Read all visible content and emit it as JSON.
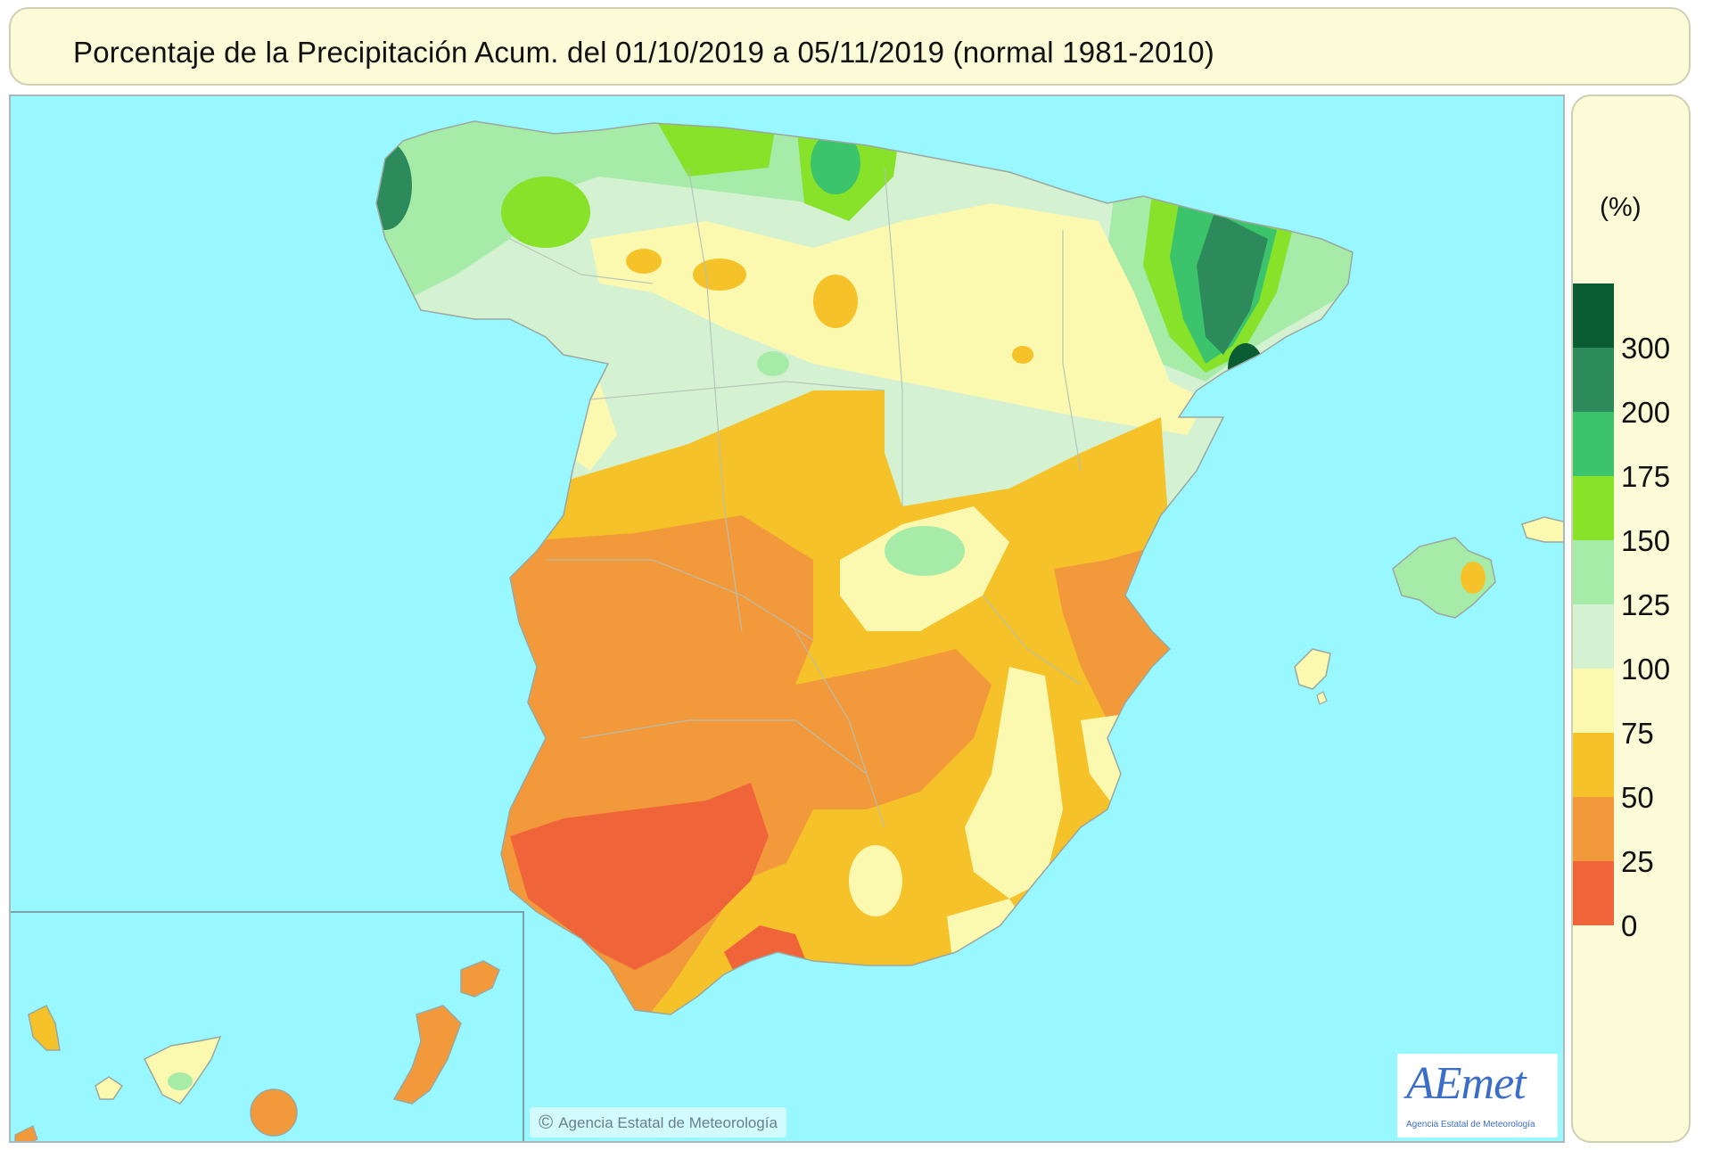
{
  "title": "Porcentaje de la Precipitación Acum. del 01/10/2019 a  05/11/2019  (normal 1981-2010)",
  "legend": {
    "unit": "(%)",
    "classes": [
      {
        "label": "300",
        "color": "#0a5c33"
      },
      {
        "label": "200",
        "color": "#2d8a5a"
      },
      {
        "label": "175",
        "color": "#3cc46c"
      },
      {
        "label": "150",
        "color": "#88e22a"
      },
      {
        "label": "125",
        "color": "#a6eba8"
      },
      {
        "label": "100",
        "color": "#d4f2d2"
      },
      {
        "label": "75",
        "color": "#fbf8b0"
      },
      {
        "label": "50",
        "color": "#f6c229"
      },
      {
        "label": "25",
        "color": "#f29a3b"
      },
      {
        "label": "0",
        "color": "#f0643a"
      }
    ]
  },
  "copyright": "Agencia Estatal de Meteorología",
  "logo": {
    "name": "AEmet",
    "subtitle": "Agencia Estatal de Meteorología"
  },
  "colors": {
    "sea": "#99f7ff",
    "panel": "#fbfbd8",
    "border": "#cfcfb4"
  }
}
